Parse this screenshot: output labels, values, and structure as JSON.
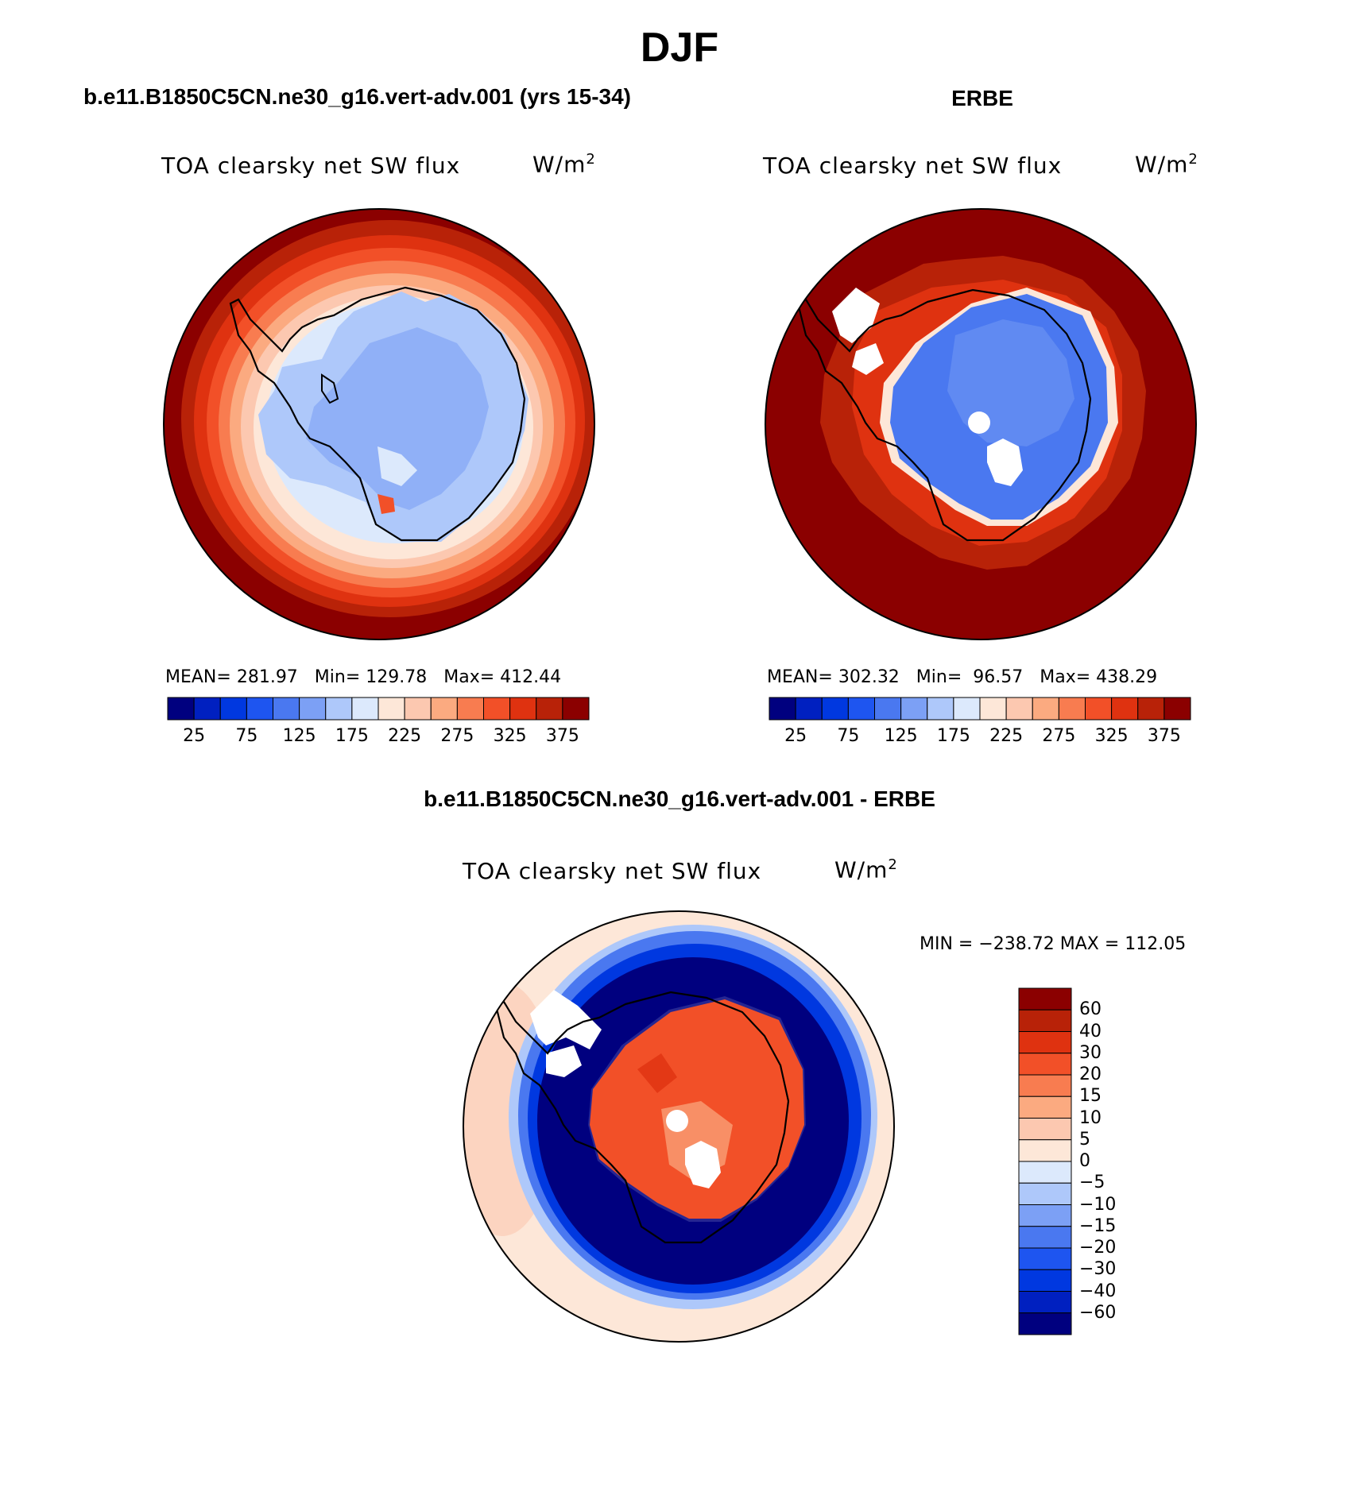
{
  "figure": {
    "title": "DJF",
    "colors": {
      "land_outline": "#000000",
      "missing": "#ffffff"
    }
  },
  "panels": [
    {
      "heading": "b.e11.B1850C5CN.ne30_g16.vert-adv.001 (yrs 15-34)",
      "variable": "TOA clearsky net SW flux",
      "units_base": "W/m",
      "units_exp": "2",
      "stats": {
        "mean_label": "MEAN=",
        "mean": "281.97",
        "min_label": "Min=",
        "min": "129.78",
        "max_label": "Max=",
        "max": "412.44"
      }
    },
    {
      "heading": "ERBE",
      "variable": "TOA clearsky net SW flux",
      "units_base": "W/m",
      "units_exp": "2",
      "stats": {
        "mean_label": "MEAN=",
        "mean": "302.32",
        "min_label": "Min=",
        "min": "96.57",
        "max_label": "Max=",
        "max": "438.29"
      }
    },
    {
      "heading": "b.e11.B1850C5CN.ne30_g16.vert-adv.001 - ERBE",
      "variable": "TOA clearsky net SW flux",
      "units_base": "W/m",
      "units_exp": "2",
      "stats_text": "MIN = −238.72 MAX = 112.05"
    }
  ],
  "chart_data": [
    {
      "type": "heatmap",
      "projection": "south-polar-stereographic",
      "region": "Antarctica",
      "colorbar": {
        "orientation": "horizontal",
        "tick_labels": [
          "25",
          "75",
          "125",
          "175",
          "225",
          "275",
          "325",
          "375"
        ],
        "levels": [
          25,
          50,
          75,
          100,
          125,
          150,
          175,
          200,
          225,
          250,
          275,
          300,
          325,
          350,
          375,
          400
        ],
        "colors": [
          "#00007f",
          "#0020c0",
          "#0038e0",
          "#1e55f0",
          "#4a78f0",
          "#7ca0f5",
          "#aec8fa",
          "#dce9fc",
          "#fde7d8",
          "#fcc8b0",
          "#fbaa80",
          "#f87c50",
          "#f25028",
          "#df3210",
          "#b82208",
          "#8b0000"
        ]
      }
    },
    {
      "type": "heatmap",
      "projection": "south-polar-stereographic",
      "region": "Antarctica",
      "colorbar": {
        "orientation": "horizontal",
        "tick_labels": [
          "25",
          "75",
          "125",
          "175",
          "225",
          "275",
          "325",
          "375"
        ],
        "levels": [
          25,
          50,
          75,
          100,
          125,
          150,
          175,
          200,
          225,
          250,
          275,
          300,
          325,
          350,
          375,
          400
        ],
        "colors": [
          "#00007f",
          "#0020c0",
          "#0038e0",
          "#1e55f0",
          "#4a78f0",
          "#7ca0f5",
          "#aec8fa",
          "#dce9fc",
          "#fde7d8",
          "#fcc8b0",
          "#fbaa80",
          "#f87c50",
          "#f25028",
          "#df3210",
          "#b82208",
          "#8b0000"
        ]
      }
    },
    {
      "type": "heatmap",
      "projection": "south-polar-stereographic",
      "region": "Antarctica",
      "colorbar": {
        "orientation": "vertical",
        "tick_labels": [
          "60",
          "40",
          "30",
          "20",
          "15",
          "10",
          "5",
          "0",
          "−5",
          "−10",
          "−15",
          "−20",
          "−30",
          "−40",
          "−60"
        ],
        "colors": [
          "#8b0000",
          "#b82208",
          "#df3210",
          "#f25028",
          "#f87c50",
          "#fbaa80",
          "#fcc8b0",
          "#fde7d8",
          "#dce9fc",
          "#aec8fa",
          "#7ca0f5",
          "#4a78f0",
          "#1e55f0",
          "#0038e0",
          "#0020c0",
          "#00007f"
        ]
      }
    }
  ]
}
